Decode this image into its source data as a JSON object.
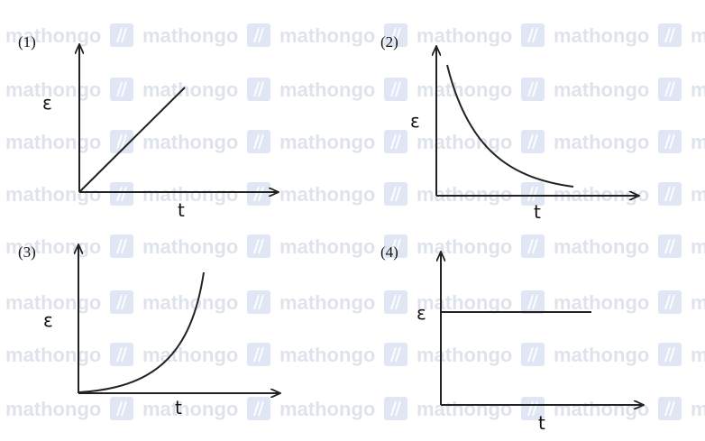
{
  "watermark": {
    "text": "mathongo",
    "icon": "mathongo-logo-icon"
  },
  "graphs": [
    {
      "label": "(1)",
      "y_axis_label": "ε",
      "x_axis_label": "t",
      "curve": "linear-increasing"
    },
    {
      "label": "(2)",
      "y_axis_label": "ε",
      "x_axis_label": "t",
      "curve": "decaying"
    },
    {
      "label": "(3)",
      "y_axis_label": "ε",
      "x_axis_label": "t",
      "curve": "growing"
    },
    {
      "label": "(4)",
      "y_axis_label": "ε",
      "x_axis_label": "t",
      "curve": "constant"
    }
  ]
}
